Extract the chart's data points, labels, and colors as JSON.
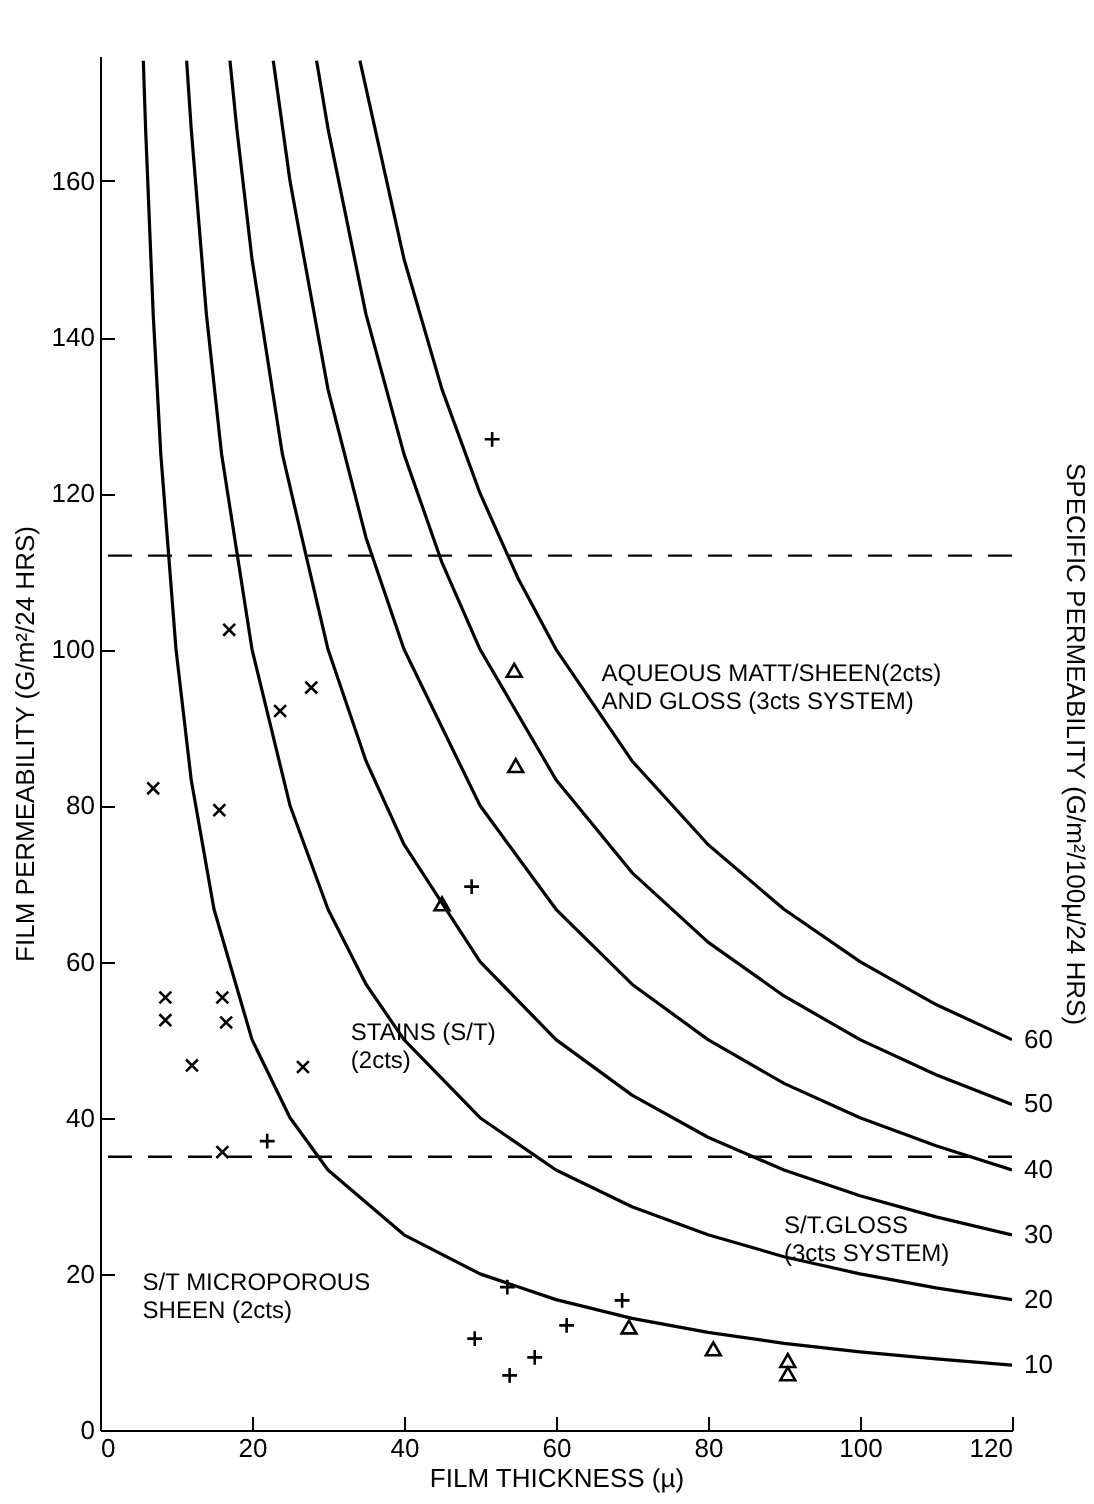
{
  "chart_data": {
    "type": "scatter",
    "xlabel": "FILM THICKNESS (µ)",
    "ylabel": "FILM PERMEABILITY (G/m²/24 HRS)",
    "y2label": "SPECIFIC PERMEABILITY (G/m²/100µ/24 HRS)",
    "xlim": [
      0,
      120
    ],
    "ylim": [
      0,
      176
    ],
    "xticks": [
      0,
      20,
      40,
      60,
      80,
      100,
      120
    ],
    "yticks": [
      0,
      20,
      40,
      60,
      80,
      100,
      120,
      140,
      160
    ],
    "grid": false,
    "series": [
      {
        "type": "line",
        "name": "10",
        "color": "#000000",
        "marker": "none",
        "line_style": "solid",
        "x": [
          5.7,
          6,
          7,
          8,
          10,
          12,
          15,
          20,
          25,
          30,
          40,
          50,
          60,
          70,
          80,
          90,
          100,
          110,
          120
        ],
        "values": [
          175.4,
          166.7,
          142.9,
          125,
          100,
          83.3,
          66.7,
          50,
          40,
          33.3,
          25,
          20,
          16.7,
          14.3,
          12.5,
          11.1,
          10,
          9.1,
          8.3
        ]
      },
      {
        "type": "line",
        "name": "20",
        "color": "#000000",
        "marker": "none",
        "line_style": "solid",
        "x": [
          11.4,
          12,
          14,
          16,
          20,
          25,
          30,
          35,
          40,
          50,
          60,
          70,
          80,
          90,
          100,
          110,
          120
        ],
        "values": [
          175.4,
          166.7,
          142.9,
          125,
          100,
          80,
          66.7,
          57.1,
          50,
          40,
          33.3,
          28.6,
          25,
          22.2,
          20,
          18.2,
          16.7
        ]
      },
      {
        "type": "line",
        "name": "30",
        "color": "#000000",
        "marker": "none",
        "line_style": "solid",
        "x": [
          17.1,
          18,
          20,
          24,
          30,
          35,
          40,
          50,
          60,
          70,
          80,
          90,
          100,
          110,
          120
        ],
        "values": [
          175.4,
          166.7,
          150,
          125,
          100,
          85.7,
          75,
          60,
          50,
          42.9,
          37.5,
          33.3,
          30,
          27.3,
          25
        ]
      },
      {
        "type": "line",
        "name": "40",
        "color": "#000000",
        "marker": "none",
        "line_style": "solid",
        "x": [
          22.8,
          25,
          30,
          35,
          40,
          50,
          60,
          70,
          80,
          90,
          100,
          110,
          120
        ],
        "values": [
          175.4,
          160,
          133.3,
          114.3,
          100,
          80,
          66.7,
          57.1,
          50,
          44.4,
          40,
          36.4,
          33.3
        ]
      },
      {
        "type": "line",
        "name": "50",
        "color": "#000000",
        "marker": "none",
        "line_style": "solid",
        "x": [
          28.5,
          30,
          35,
          40,
          45,
          50,
          60,
          70,
          80,
          90,
          100,
          110,
          120
        ],
        "values": [
          175.4,
          166.7,
          142.9,
          125,
          111.1,
          100,
          83.3,
          71.4,
          62.5,
          55.6,
          50,
          45.5,
          41.7
        ]
      },
      {
        "type": "line",
        "name": "60",
        "color": "#000000",
        "marker": "none",
        "line_style": "solid",
        "x": [
          34.2,
          40,
          45,
          50,
          55,
          60,
          70,
          80,
          90,
          100,
          110,
          120
        ],
        "values": [
          175.4,
          150,
          133.3,
          120,
          109.1,
          100,
          85.7,
          75,
          66.7,
          60,
          54.5,
          50
        ]
      },
      {
        "type": "scatter",
        "color": "#000000",
        "marker": "x",
        "x": [
          7.0,
          17.0,
          23.7,
          27.8,
          15.7,
          8.6,
          8.6,
          16.1,
          16.6,
          12.1,
          26.7,
          16.1
        ],
        "values": [
          82.2,
          102.5,
          92.1,
          95.1,
          79.4,
          55.4,
          52.5,
          55.4,
          52.2,
          46.7,
          46.5,
          35.6
        ]
      },
      {
        "type": "scatter",
        "color": "#000000",
        "marker": "cross",
        "x": [
          22.0,
          51.6,
          48.9,
          53.6,
          49.3,
          61.4,
          57.2,
          53.9,
          68.7
        ],
        "values": [
          37.0,
          126.9,
          69.6,
          18.3,
          11.7,
          13.4,
          9.3,
          7.0,
          16.6
        ]
      },
      {
        "type": "scatter",
        "color": "#000000",
        "marker": "triangle",
        "x": [
          54.5,
          54.7,
          45.0,
          69.6,
          80.7,
          90.5,
          90.5
        ],
        "values": [
          97.3,
          85.1,
          67.4,
          13.2,
          10.4,
          8.9,
          7.2
        ]
      }
    ],
    "ref_lines": [
      {
        "axis": "y",
        "value": 112,
        "color": "#000000",
        "line_style": "dashed"
      },
      {
        "axis": "y",
        "value": 35,
        "color": "#000000",
        "line_style": "dashed"
      }
    ],
    "annotations": [
      "AQUEOUS MATT/SHEEN(2cts)\nAND GLOSS (3cts SYSTEM)",
      "STAINS (S/T)\n(2cts)",
      "S/T MICROPOROUS\nSHEEN (2cts)",
      "S/T.GLOSS\n(3cts SYSTEM)"
    ]
  }
}
